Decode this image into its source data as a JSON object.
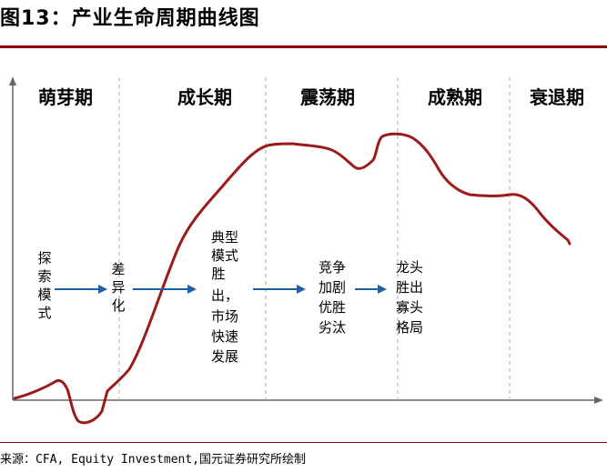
{
  "title": "图13：产业生命周期曲线图",
  "phases": [
    "萌芽期",
    "成长期",
    "震荡期",
    "成熟期",
    "衰退期"
  ],
  "stages": [
    [
      "探",
      "索",
      "模",
      "式"
    ],
    [
      "差",
      "异",
      "化"
    ],
    [
      "典型",
      "模式",
      "胜",
      "出，",
      "市场",
      "快速",
      "发展"
    ],
    [
      "竞争",
      "加剧",
      "优胜",
      "劣汰"
    ],
    [
      "龙头",
      "胜出",
      "寡头",
      "格局"
    ]
  ],
  "source": "来源：CFA, Equity Investment,国元证券研究所绘制",
  "colors": {
    "curve": "#9b1b1b",
    "arrow": "#1f5fa8",
    "rule": "#8b0000",
    "divider": "#aaaaaa"
  }
}
